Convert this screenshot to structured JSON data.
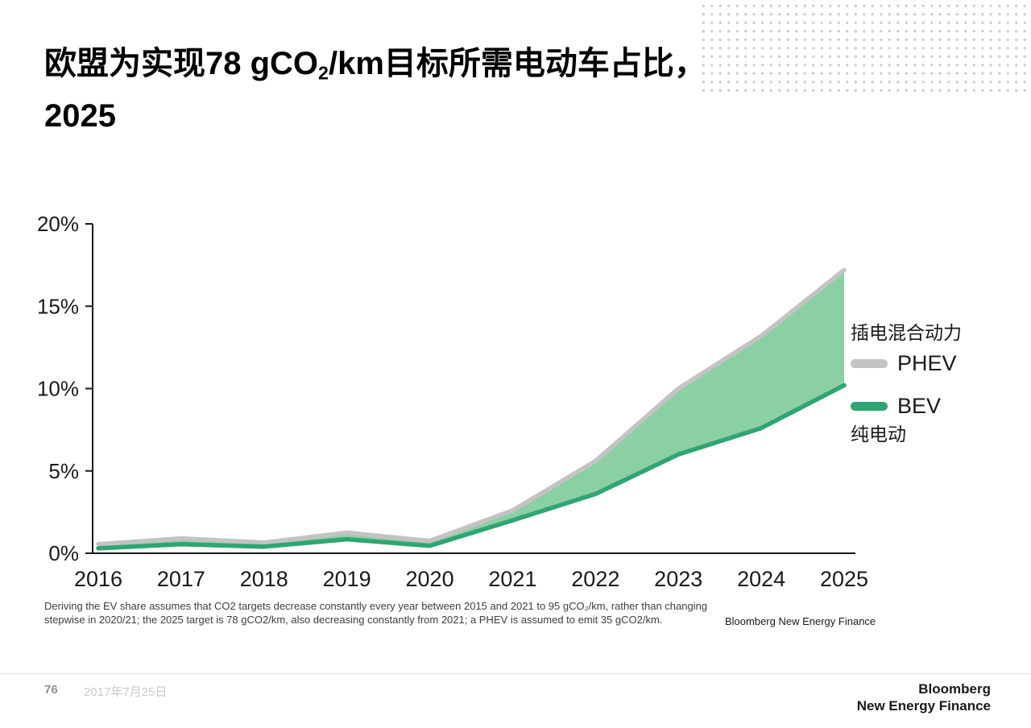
{
  "slide": {
    "title": {
      "pre": "欧盟为实现78 gCO",
      "sub": "2",
      "post": "/km目标所需电动车占比，2025"
    },
    "footnote": "Deriving the EV share assumes that CO2 targets decrease constantly every year between 2015 and 2021 to 95 gCO₂/km, rather than changing stepwise in 2020/21; the 2025 target is 78 gCO2/km, also decreasing constantly from 2021; a PHEV is assumed to emit 35 gCO2/km.",
    "source": "Bloomberg New Energy Finance",
    "footer": {
      "page": "76",
      "date": "2017年7月25日",
      "logo_line1": "Bloomberg",
      "logo_line2": "New Energy Finance"
    }
  },
  "legend": {
    "phev_cn": "插电混合动力",
    "phev_en": "PHEV",
    "bev_en": "BEV",
    "bev_cn": "纯电动"
  },
  "chart_data": {
    "type": "area",
    "title": "欧盟为实现78 gCO2/km目标所需电动车占比，2025",
    "x": [
      "2016",
      "2017",
      "2018",
      "2019",
      "2020",
      "2021",
      "2022",
      "2023",
      "2024",
      "2025"
    ],
    "series": [
      {
        "name": "BEV 纯电动 (bottom line)",
        "values": [
          0.3,
          0.55,
          0.4,
          0.85,
          0.45,
          2.0,
          3.6,
          6.0,
          7.6,
          10.2
        ]
      },
      {
        "name": "BEV+PHEV total 插电混合动力 (top line)",
        "values": [
          0.55,
          0.9,
          0.65,
          1.25,
          0.75,
          2.6,
          5.6,
          10.0,
          13.2,
          17.2
        ]
      }
    ],
    "note": "Green fill spans between BEV line and total (PHEV) line; PHEV series values are cumulative top line",
    "ylim": [
      0,
      20
    ],
    "yticks": [
      0,
      5,
      10,
      15,
      20
    ],
    "ytick_format": "percent",
    "xlabel": "",
    "ylabel": "",
    "grid": false,
    "legend_position": "right",
    "colors": {
      "bev_line": "#2FA572",
      "phev_line": "#C3C3C3",
      "fill": "#8BD0A2",
      "axis": "#1a1a1a"
    }
  }
}
